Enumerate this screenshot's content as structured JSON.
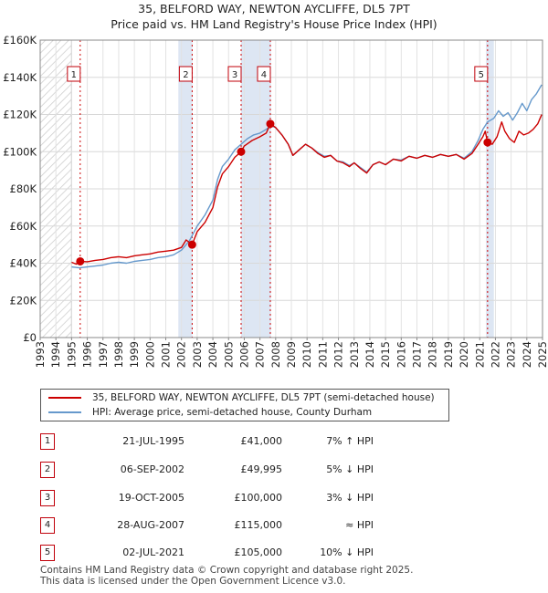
{
  "title_line1": "35, BELFORD WAY, NEWTON AYCLIFFE, DL5 7PT",
  "title_line2": "Price paid vs. HM Land Registry's House Price Index (HPI)",
  "colors": {
    "property": "#cc0000",
    "hpi": "#6699cc",
    "band": "#dde6f3",
    "hatch": "#cccccc",
    "marker_border": "#c0000a"
  },
  "chart_data": {
    "type": "line",
    "xlim": [
      1993,
      2025
    ],
    "ylim": [
      0,
      160000
    ],
    "y_ticks": [
      {
        "value": 0,
        "label": "£0"
      },
      {
        "value": 20000,
        "label": "£20K"
      },
      {
        "value": 40000,
        "label": "£40K"
      },
      {
        "value": 60000,
        "label": "£60K"
      },
      {
        "value": 80000,
        "label": "£80K"
      },
      {
        "value": 100000,
        "label": "£100K"
      },
      {
        "value": 120000,
        "label": "£120K"
      },
      {
        "value": 140000,
        "label": "£140K"
      },
      {
        "value": 160000,
        "label": "£160K"
      }
    ],
    "x_ticks": [
      "1993",
      "1994",
      "1995",
      "1996",
      "1997",
      "1998",
      "1999",
      "2000",
      "2001",
      "2002",
      "2003",
      "2004",
      "2005",
      "2006",
      "2007",
      "2008",
      "2009",
      "2010",
      "2011",
      "2012",
      "2013",
      "2014",
      "2015",
      "2016",
      "2017",
      "2018",
      "2019",
      "2020",
      "2021",
      "2022",
      "2023",
      "2024",
      "2025"
    ],
    "hatch_until": 1995,
    "bands": [
      [
        2001.8,
        2002.7
      ],
      [
        2005.8,
        2007.7
      ],
      [
        2021.4,
        2021.9
      ]
    ],
    "series": [
      {
        "name": "35, BELFORD WAY, NEWTON AYCLIFFE, DL5 7PT (semi-detached house)",
        "color": "#cc0000",
        "points": [
          [
            1995.0,
            40500
          ],
          [
            1995.3,
            39500
          ],
          [
            1995.55,
            41000
          ],
          [
            1996.0,
            40800
          ],
          [
            1996.5,
            41500
          ],
          [
            1997.0,
            42000
          ],
          [
            1997.5,
            43000
          ],
          [
            1998.0,
            43500
          ],
          [
            1998.5,
            43000
          ],
          [
            1999.0,
            44000
          ],
          [
            1999.5,
            44500
          ],
          [
            2000.0,
            45000
          ],
          [
            2000.5,
            46000
          ],
          [
            2001.0,
            46500
          ],
          [
            2001.5,
            47000
          ],
          [
            2002.0,
            48500
          ],
          [
            2002.3,
            52500
          ],
          [
            2002.68,
            49995
          ],
          [
            2003.0,
            57000
          ],
          [
            2003.5,
            62000
          ],
          [
            2004.0,
            70000
          ],
          [
            2004.3,
            81000
          ],
          [
            2004.6,
            88000
          ],
          [
            2005.0,
            92000
          ],
          [
            2005.4,
            97000
          ],
          [
            2005.8,
            100000
          ],
          [
            2006.0,
            103000
          ],
          [
            2006.5,
            106000
          ],
          [
            2007.0,
            108000
          ],
          [
            2007.4,
            110000
          ],
          [
            2007.66,
            115000
          ],
          [
            2008.0,
            113000
          ],
          [
            2008.4,
            109000
          ],
          [
            2008.8,
            104000
          ],
          [
            2009.1,
            98000
          ],
          [
            2009.5,
            101000
          ],
          [
            2009.9,
            104000
          ],
          [
            2010.3,
            102000
          ],
          [
            2010.7,
            99000
          ],
          [
            2011.1,
            97000
          ],
          [
            2011.5,
            98000
          ],
          [
            2011.9,
            95000
          ],
          [
            2012.3,
            94000
          ],
          [
            2012.7,
            92000
          ],
          [
            2013.0,
            94000
          ],
          [
            2013.4,
            91000
          ],
          [
            2013.8,
            88500
          ],
          [
            2014.2,
            93000
          ],
          [
            2014.6,
            94500
          ],
          [
            2015.0,
            93000
          ],
          [
            2015.5,
            96000
          ],
          [
            2016.0,
            95000
          ],
          [
            2016.5,
            97500
          ],
          [
            2017.0,
            96500
          ],
          [
            2017.5,
            98000
          ],
          [
            2018.0,
            97000
          ],
          [
            2018.5,
            98500
          ],
          [
            2019.0,
            97500
          ],
          [
            2019.5,
            98500
          ],
          [
            2020.0,
            96000
          ],
          [
            2020.5,
            99000
          ],
          [
            2020.9,
            104000
          ],
          [
            2021.2,
            108000
          ],
          [
            2021.35,
            111000
          ],
          [
            2021.5,
            105000
          ],
          [
            2021.8,
            104000
          ],
          [
            2022.1,
            108000
          ],
          [
            2022.4,
            116000
          ],
          [
            2022.6,
            111000
          ],
          [
            2022.9,
            107000
          ],
          [
            2023.2,
            105000
          ],
          [
            2023.5,
            111000
          ],
          [
            2023.8,
            109000
          ],
          [
            2024.1,
            110000
          ],
          [
            2024.4,
            112000
          ],
          [
            2024.7,
            115000
          ],
          [
            2024.95,
            120000
          ]
        ]
      },
      {
        "name": "HPI: Average price, semi-detached house, County Durham",
        "color": "#6699cc",
        "points": [
          [
            1995.0,
            38000
          ],
          [
            1995.5,
            37500
          ],
          [
            1996.0,
            38000
          ],
          [
            1996.5,
            38500
          ],
          [
            1997.0,
            39000
          ],
          [
            1997.5,
            40000
          ],
          [
            1998.0,
            40500
          ],
          [
            1998.5,
            40000
          ],
          [
            1999.0,
            41000
          ],
          [
            1999.5,
            41500
          ],
          [
            2000.0,
            42000
          ],
          [
            2000.5,
            43000
          ],
          [
            2001.0,
            43500
          ],
          [
            2001.5,
            44500
          ],
          [
            2002.0,
            47000
          ],
          [
            2002.5,
            52000
          ],
          [
            2003.0,
            60000
          ],
          [
            2003.5,
            66000
          ],
          [
            2004.0,
            74000
          ],
          [
            2004.3,
            85000
          ],
          [
            2004.6,
            92000
          ],
          [
            2005.0,
            96000
          ],
          [
            2005.4,
            101000
          ],
          [
            2005.8,
            104000
          ],
          [
            2006.2,
            107000
          ],
          [
            2006.6,
            109000
          ],
          [
            2007.0,
            110000
          ],
          [
            2007.4,
            112000
          ],
          [
            2007.7,
            114000
          ],
          [
            2008.0,
            113000
          ],
          [
            2008.4,
            109000
          ],
          [
            2008.8,
            104000
          ],
          [
            2009.1,
            98000
          ],
          [
            2009.5,
            101000
          ],
          [
            2009.9,
            104000
          ],
          [
            2010.3,
            102000
          ],
          [
            2010.7,
            99500
          ],
          [
            2011.1,
            97500
          ],
          [
            2011.5,
            98000
          ],
          [
            2011.9,
            95000
          ],
          [
            2012.3,
            94500
          ],
          [
            2012.7,
            92500
          ],
          [
            2013.0,
            94000
          ],
          [
            2013.4,
            91500
          ],
          [
            2013.8,
            89000
          ],
          [
            2014.2,
            93000
          ],
          [
            2014.6,
            94500
          ],
          [
            2015.0,
            93000
          ],
          [
            2015.5,
            96000
          ],
          [
            2016.0,
            95500
          ],
          [
            2016.5,
            97500
          ],
          [
            2017.0,
            96500
          ],
          [
            2017.5,
            98000
          ],
          [
            2018.0,
            97000
          ],
          [
            2018.5,
            98500
          ],
          [
            2019.0,
            97500
          ],
          [
            2019.5,
            98500
          ],
          [
            2020.0,
            96500
          ],
          [
            2020.5,
            100000
          ],
          [
            2020.9,
            106000
          ],
          [
            2021.2,
            112000
          ],
          [
            2021.5,
            116000
          ],
          [
            2021.9,
            118000
          ],
          [
            2022.2,
            122000
          ],
          [
            2022.5,
            119000
          ],
          [
            2022.8,
            121000
          ],
          [
            2023.1,
            117000
          ],
          [
            2023.4,
            121000
          ],
          [
            2023.7,
            126000
          ],
          [
            2024.0,
            122000
          ],
          [
            2024.3,
            128000
          ],
          [
            2024.6,
            131000
          ],
          [
            2024.95,
            136000
          ]
        ]
      }
    ],
    "sales": [
      {
        "n": "1",
        "x": 1995.55,
        "y": 41000,
        "date": "21-JUL-1995",
        "price": "£41,000",
        "hpi": "7% ↑ HPI"
      },
      {
        "n": "2",
        "x": 2002.68,
        "y": 49995,
        "date": "06-SEP-2002",
        "price": "£49,995",
        "hpi": "5% ↓ HPI"
      },
      {
        "n": "3",
        "x": 2005.8,
        "y": 100000,
        "date": "19-OCT-2005",
        "price": "£100,000",
        "hpi": "3% ↓ HPI"
      },
      {
        "n": "4",
        "x": 2007.66,
        "y": 115000,
        "date": "28-AUG-2007",
        "price": "£115,000",
        "hpi": "≈ HPI"
      },
      {
        "n": "5",
        "x": 2021.5,
        "y": 105000,
        "date": "02-JUL-2021",
        "price": "£105,000",
        "hpi": "10% ↓ HPI"
      }
    ]
  },
  "legend": {
    "property": "35, BELFORD WAY, NEWTON AYCLIFFE, DL5 7PT (semi-detached house)",
    "hpi": "HPI: Average price, semi-detached house, County Durham"
  },
  "footer": {
    "line1": "Contains HM Land Registry data © Crown copyright and database right 2025.",
    "line2": "This data is licensed under the Open Government Licence v3.0."
  }
}
